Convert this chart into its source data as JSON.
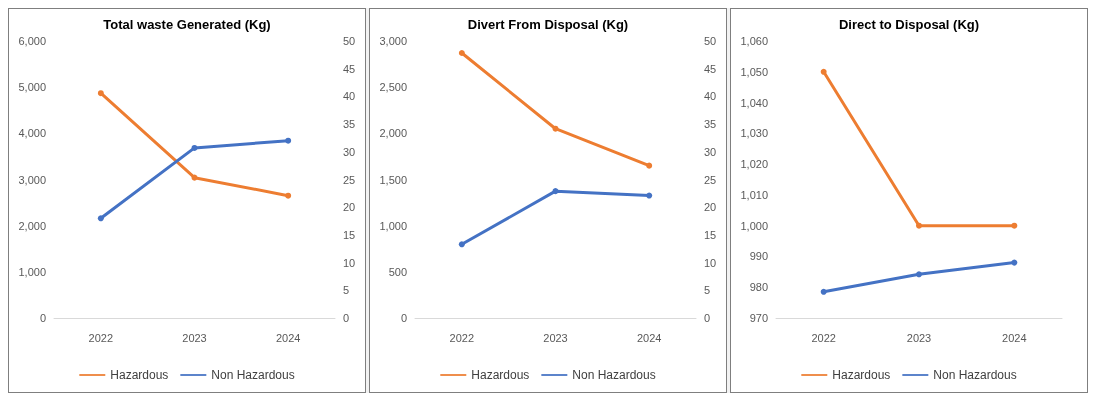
{
  "chart_data": [
    {
      "type": "line",
      "title": "Total waste Generated (Kg)",
      "categories": [
        "2022",
        "2023",
        "2024"
      ],
      "ylim": [
        0,
        6000
      ],
      "yticks": [
        {
          "value": 0,
          "label": "0"
        },
        {
          "value": 1000,
          "label": "1,000"
        },
        {
          "value": 2000,
          "label": "2,000"
        },
        {
          "value": 3000,
          "label": "3,000"
        },
        {
          "value": 4000,
          "label": "4,000"
        },
        {
          "value": 5000,
          "label": "5,000"
        },
        {
          "value": 6000,
          "label": "6,000"
        }
      ],
      "y2lim": [
        0,
        50
      ],
      "y2ticks": [
        0,
        5,
        10,
        15,
        20,
        25,
        30,
        35,
        40,
        45,
        50
      ],
      "grid": false,
      "legend": "bottom",
      "marker": "circle",
      "line_style": "solid",
      "series": [
        {
          "name": "Hazardous",
          "color": "#ed7d31",
          "values": [
            4870,
            3040,
            2650
          ]
        },
        {
          "name": "Non Hazardous",
          "color": "#4472c4",
          "axis": "y2",
          "values": [
            18,
            30.7,
            32
          ]
        }
      ]
    },
    {
      "type": "line",
      "title": "Divert From Disposal (Kg)",
      "categories": [
        "2022",
        "2023",
        "2024"
      ],
      "ylim": [
        0,
        3000
      ],
      "yticks": [
        {
          "value": 0,
          "label": "0"
        },
        {
          "value": 500,
          "label": "500"
        },
        {
          "value": 1000,
          "label": "1,000"
        },
        {
          "value": 1500,
          "label": "1,500"
        },
        {
          "value": 2000,
          "label": "2,000"
        },
        {
          "value": 2500,
          "label": "2,500"
        },
        {
          "value": 3000,
          "label": "3,000"
        }
      ],
      "y2lim": [
        0,
        50
      ],
      "y2ticks": [
        0,
        5,
        10,
        15,
        20,
        25,
        30,
        35,
        40,
        45,
        50
      ],
      "grid": false,
      "legend": "bottom",
      "marker": "circle",
      "line_style": "solid",
      "series": [
        {
          "name": "Hazardous",
          "color": "#ed7d31",
          "values": [
            2870,
            2050,
            1650
          ]
        },
        {
          "name": "Non Hazardous",
          "color": "#4472c4",
          "axis": "y2",
          "values": [
            13.3,
            22.9,
            22.1
          ]
        }
      ]
    },
    {
      "type": "line",
      "title": "Direct to Disposal (Kg)",
      "categories": [
        "2022",
        "2023",
        "2024"
      ],
      "ylim": [
        970,
        1060
      ],
      "yticks": [
        970,
        980,
        990,
        {
          "value": 1000,
          "label": "1,000"
        },
        {
          "value": 1010,
          "label": "1,010"
        },
        {
          "value": 1020,
          "label": "1,020"
        },
        {
          "value": 1030,
          "label": "1,030"
        },
        {
          "value": 1040,
          "label": "1,040"
        },
        {
          "value": 1050,
          "label": "1,050"
        },
        {
          "value": 1060,
          "label": "1,060"
        }
      ],
      "grid": false,
      "legend": "bottom",
      "marker": "circle",
      "line_style": "solid",
      "series": [
        {
          "name": "Hazardous",
          "color": "#ed7d31",
          "values": [
            1050,
            1000,
            1000
          ]
        },
        {
          "name": "Non Hazardous",
          "color": "#4472c4",
          "values": [
            978.5,
            984.2,
            988
          ]
        }
      ]
    }
  ]
}
